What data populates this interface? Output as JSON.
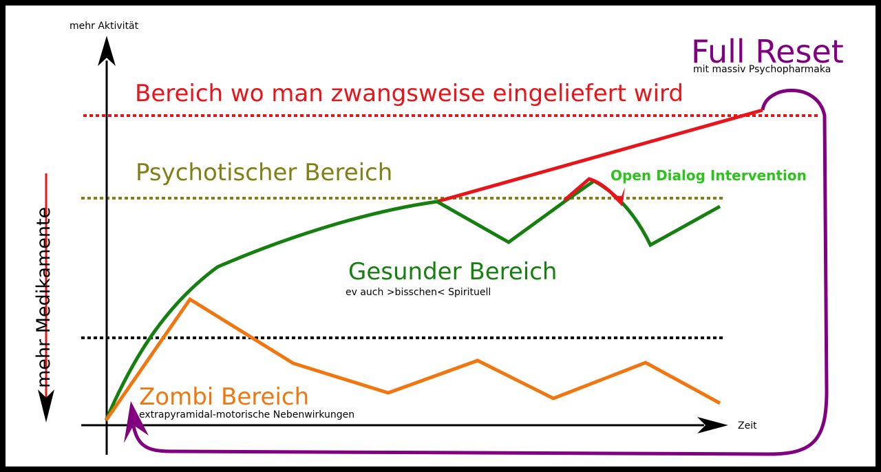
{
  "axes": {
    "y_label": "mehr Aktivität",
    "x_label": "Zeit",
    "side_label": "mehr Medikamente"
  },
  "zones": {
    "forced": "Bereich wo man zwangsweise eingeliefert wird",
    "psychotic": "Psychotischer Bereich",
    "healthy": "Gesunder Bereich",
    "healthy_sub": "ev auch >bisschen< Spirituell",
    "zombie": "Zombi Bereich",
    "zombie_sub": "extrapyramidal-motorische Nebenwirkungen"
  },
  "annotations": {
    "reset": "Full Reset",
    "reset_sub": "mit massiv Psychopharmaka",
    "open_dialog": "Open Dialog Intervention"
  },
  "colors": {
    "forced": "#e8141a",
    "psychotic": "#808016",
    "healthy": "#15800f",
    "zombie": "#f2760f",
    "reset": "#800080",
    "open_dialog": "#2bc41a",
    "threshold_low": "#000000"
  }
}
